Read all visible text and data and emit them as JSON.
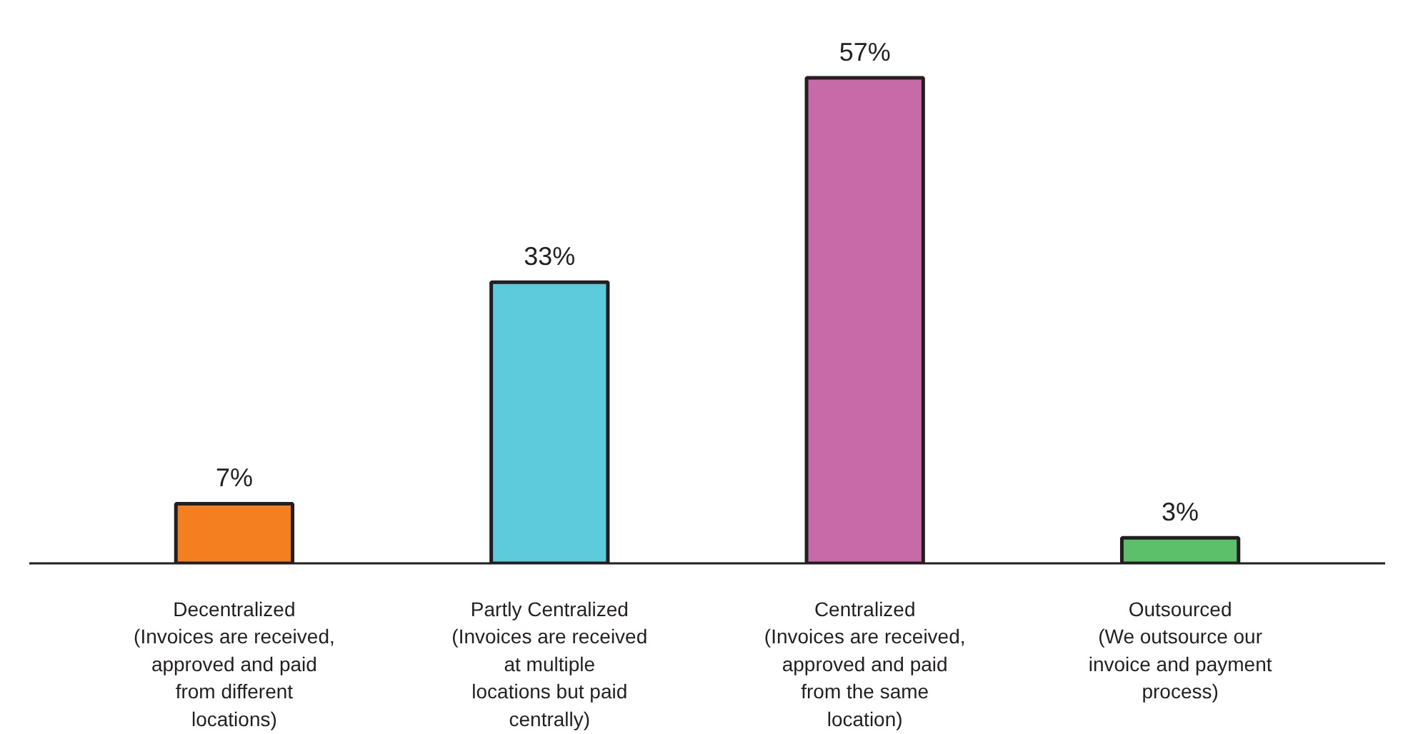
{
  "chart_data": {
    "type": "bar",
    "categories": [
      "Decentralized\n(Invoices are received,\napproved and paid\nfrom different\nlocations)",
      "Partly Centralized\n(Invoices are received\nat multiple\nlocations but paid\ncentrally)",
      "Centralized\n(Invoices are received,\napproved and paid\nfrom the same\nlocation)",
      "Outsourced\n(We outsource our\ninvoice and payment\nprocess)"
    ],
    "values": [
      7,
      33,
      57,
      3
    ],
    "colors": [
      "#f47f20",
      "#5ecbdc",
      "#c86aa8",
      "#5cbf6a"
    ],
    "value_labels": [
      "7%",
      "33%",
      "57%",
      "3%"
    ],
    "grid": false
  }
}
